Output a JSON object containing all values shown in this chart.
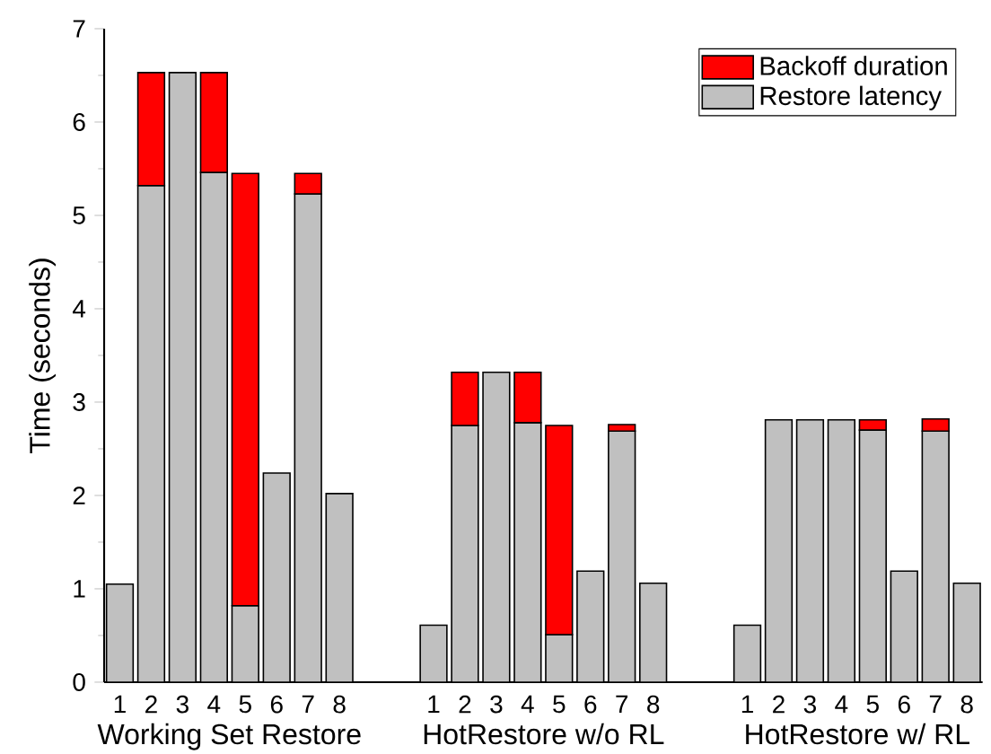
{
  "chart_data": {
    "type": "bar",
    "stacked": true,
    "ylabel": "Time (seconds)",
    "categories": [
      "1",
      "2",
      "3",
      "4",
      "5",
      "6",
      "7",
      "8",
      null,
      null,
      "1",
      "2",
      "3",
      "4",
      "5",
      "6",
      "7",
      "8",
      null,
      null,
      "1",
      "2",
      "3",
      "4",
      "5",
      "6",
      "7",
      "8"
    ],
    "series": [
      {
        "name": "Restore latency",
        "color": "#c0c0c0",
        "values": [
          1.05,
          5.32,
          6.53,
          5.46,
          0.82,
          2.24,
          5.23,
          2.02,
          null,
          null,
          0.61,
          2.75,
          3.32,
          2.78,
          0.51,
          1.19,
          2.69,
          1.06,
          null,
          null,
          0.61,
          2.81,
          2.81,
          2.81,
          2.7,
          1.19,
          2.69,
          1.06
        ]
      },
      {
        "name": "Backoff duration",
        "color": "#ff0000",
        "values": [
          null,
          1.21,
          null,
          1.07,
          4.63,
          null,
          0.22,
          null,
          null,
          null,
          null,
          0.57,
          null,
          0.54,
          2.24,
          null,
          0.07,
          null,
          null,
          null,
          null,
          null,
          null,
          null,
          0.11,
          null,
          0.13,
          null
        ]
      }
    ],
    "annotations": [
      "Working Set Restore",
      "HotRestore w/o RL",
      "HotRestore w/ RL"
    ],
    "ylim": [
      0,
      7
    ],
    "yticks": [
      0,
      1,
      2,
      3,
      4,
      5,
      6,
      7
    ],
    "grid": false,
    "legend": "top right"
  }
}
